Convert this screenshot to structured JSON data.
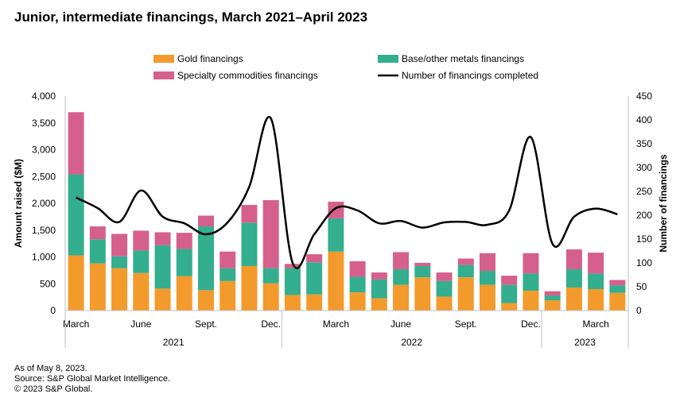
{
  "title": "Junior, intermediate financings, March 2021–April 2023",
  "footnotes": [
    "As of May 8, 2023.",
    "Source: S&P Global Market Intelligence.",
    "© 2023 S&P Global."
  ],
  "colors": {
    "gold": "#f39a2c",
    "base": "#33ae8e",
    "specialty": "#d5608b",
    "line": "#000000",
    "axis": "#bfbfbf"
  },
  "chart_data": {
    "type": "bar",
    "stacked": true,
    "title": "Junior, intermediate financings, March 2021–April 2023",
    "ylabel": "Amount raised ($M)",
    "y2label": "Number of financings",
    "ylim": [
      0,
      4000
    ],
    "y2lim": [
      0,
      450
    ],
    "yticks": [
      "4,000",
      "3,500",
      "3,000",
      "2,500",
      "2,000",
      "1,500",
      "1,000",
      "500",
      "0"
    ],
    "y2ticks": [
      "450",
      "400",
      "350",
      "300",
      "250",
      "200",
      "150",
      "100",
      "50",
      "0"
    ],
    "xtick_labels": [
      {
        "index": 0,
        "label": "March"
      },
      {
        "index": 3,
        "label": "June"
      },
      {
        "index": 6,
        "label": "Sept."
      },
      {
        "index": 9,
        "label": "Dec."
      },
      {
        "index": 12,
        "label": "March"
      },
      {
        "index": 15,
        "label": "June"
      },
      {
        "index": 18,
        "label": "Sept."
      },
      {
        "index": 21,
        "label": "Dec."
      },
      {
        "index": 24,
        "label": "March"
      }
    ],
    "year_groups": [
      {
        "label": "2021",
        "start": 0,
        "end": 9
      },
      {
        "label": "2022",
        "start": 10,
        "end": 21
      },
      {
        "label": "2023",
        "start": 22,
        "end": 25
      }
    ],
    "categories": [
      "Mar 2021",
      "Apr 2021",
      "May 2021",
      "Jun 2021",
      "Jul 2021",
      "Aug 2021",
      "Sep 2021",
      "Oct 2021",
      "Nov 2021",
      "Dec 2021",
      "Jan 2022",
      "Feb 2022",
      "Mar 2022",
      "Apr 2022",
      "May 2022",
      "Jun 2022",
      "Jul 2022",
      "Aug 2022",
      "Sep 2022",
      "Oct 2022",
      "Nov 2022",
      "Dec 2022",
      "Jan 2023",
      "Feb 2023",
      "Mar 2023",
      "Apr 2023"
    ],
    "legend": [
      {
        "label": "Gold financings",
        "key": "gold",
        "kind": "bar"
      },
      {
        "label": "Base/other metals financings",
        "key": "base",
        "kind": "bar"
      },
      {
        "label": "Specialty commodities financings",
        "key": "specialty",
        "kind": "bar"
      },
      {
        "label": "Number of financings completed",
        "key": "line",
        "kind": "line"
      }
    ],
    "series": [
      {
        "name": "Gold financings",
        "key": "gold",
        "values": [
          1030,
          880,
          790,
          700,
          410,
          640,
          380,
          550,
          830,
          510,
          290,
          300,
          1100,
          340,
          230,
          480,
          620,
          260,
          620,
          480,
          140,
          370,
          190,
          430,
          400,
          330
        ]
      },
      {
        "name": "Base/other metals financings",
        "key": "base",
        "values": [
          1510,
          450,
          220,
          420,
          810,
          510,
          1190,
          240,
          810,
          280,
          500,
          600,
          620,
          290,
          350,
          290,
          210,
          290,
          230,
          260,
          340,
          320,
          90,
          340,
          290,
          140
        ]
      },
      {
        "name": "Specialty commodities financings",
        "key": "specialty",
        "values": [
          1160,
          240,
          420,
          370,
          240,
          300,
          200,
          310,
          330,
          1270,
          80,
          150,
          310,
          290,
          130,
          320,
          60,
          160,
          120,
          330,
          170,
          380,
          80,
          370,
          390,
          100
        ]
      },
      {
        "name": "Number of financings completed",
        "key": "count",
        "axis": "right",
        "values": [
          237,
          215,
          186,
          252,
          197,
          183,
          160,
          185,
          260,
          403,
          100,
          160,
          215,
          210,
          183,
          188,
          174,
          185,
          186,
          180,
          210,
          364,
          140,
          197,
          214,
          202
        ]
      }
    ]
  }
}
